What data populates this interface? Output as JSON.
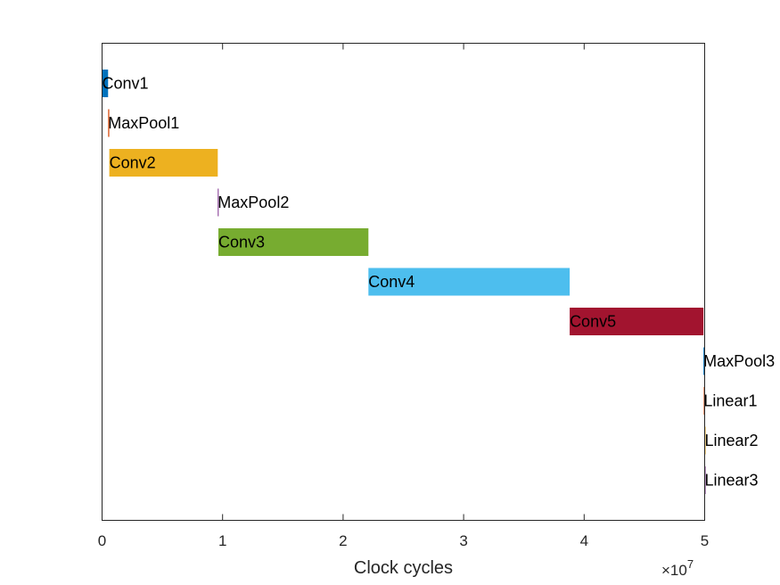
{
  "chart_data": {
    "type": "bar",
    "orientation": "horizontal",
    "title": "",
    "xlabel": "Clock cycles",
    "ylabel": "",
    "x_exponent_times": "×10",
    "x_exponent_power": "7",
    "xlim": [
      0,
      5
    ],
    "xticks": [
      "0",
      "1",
      "2",
      "3",
      "4",
      "5"
    ],
    "grid": false,
    "legend": "none",
    "series": [
      {
        "name": "Conv1",
        "start": 0.0,
        "end": 0.05,
        "color": "#0072BD"
      },
      {
        "name": "MaxPool1",
        "start": 0.05,
        "end": 0.06,
        "color": "#D95319"
      },
      {
        "name": "Conv2",
        "start": 0.06,
        "end": 0.96,
        "color": "#EDB120"
      },
      {
        "name": "MaxPool2",
        "start": 0.96,
        "end": 0.965,
        "color": "#7E2F8E"
      },
      {
        "name": "Conv3",
        "start": 0.965,
        "end": 2.21,
        "color": "#77AC30"
      },
      {
        "name": "Conv4",
        "start": 2.21,
        "end": 3.88,
        "color": "#4DBEEE"
      },
      {
        "name": "Conv5",
        "start": 3.88,
        "end": 4.99,
        "color": "#A2142F"
      },
      {
        "name": "MaxPool3",
        "start": 4.99,
        "end": 4.992,
        "color": "#0072BD"
      },
      {
        "name": "Linear1",
        "start": 4.992,
        "end": 5.0,
        "color": "#D95319"
      },
      {
        "name": "Linear2",
        "start": 5.0,
        "end": 5.001,
        "color": "#EDB120"
      },
      {
        "name": "Linear3",
        "start": 5.0,
        "end": 5.001,
        "color": "#7E2F8E"
      }
    ]
  }
}
